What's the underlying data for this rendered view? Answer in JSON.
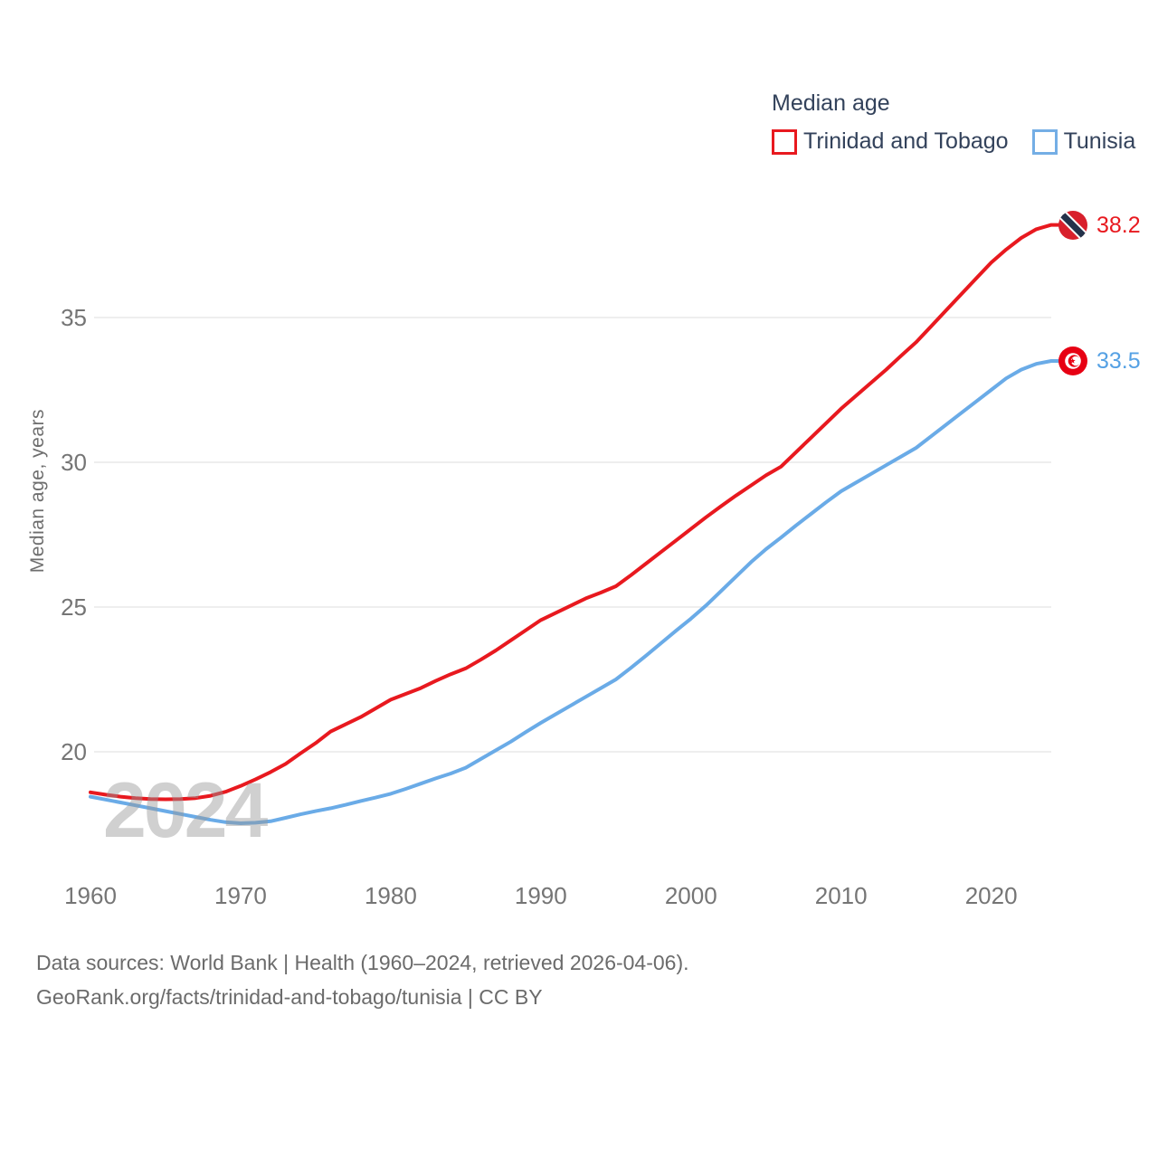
{
  "legend": {
    "title": "Median age",
    "items": [
      {
        "label": "Trinidad and Tobago",
        "color": "#e8191f"
      },
      {
        "label": "Tunisia",
        "color": "#74aee5"
      }
    ]
  },
  "axes": {
    "y_label": "Median age, years"
  },
  "watermark": "2024",
  "end_labels": [
    {
      "series": "Trinidad and Tobago",
      "value": "38.2",
      "color": "#e8191f"
    },
    {
      "series": "Tunisia",
      "value": "33.5",
      "color": "#55a1e4"
    }
  ],
  "footer": {
    "line1": "Data sources: World Bank | Health (1960–2024, retrieved 2026-04-06).",
    "line2": "GeoRank.org/facts/trinidad-and-tobago/tunisia | CC BY"
  },
  "chart_data": {
    "type": "line",
    "title": "Median age",
    "xlabel": "",
    "ylabel": "Median age, years",
    "grid": "horizontal",
    "legend_position": "top-right",
    "xlim": [
      1960,
      2024
    ],
    "ylim": [
      17,
      39.5
    ],
    "xticks": [
      1960,
      1970,
      1980,
      1990,
      2000,
      2010,
      2020
    ],
    "yticks": [
      20,
      25,
      30,
      35
    ],
    "x": [
      1960,
      1961,
      1962,
      1963,
      1964,
      1965,
      1966,
      1967,
      1968,
      1969,
      1970,
      1971,
      1972,
      1973,
      1974,
      1975,
      1976,
      1977,
      1978,
      1979,
      1980,
      1981,
      1982,
      1983,
      1984,
      1985,
      1986,
      1987,
      1988,
      1989,
      1990,
      1991,
      1992,
      1993,
      1994,
      1995,
      1996,
      1997,
      1998,
      1999,
      2000,
      2001,
      2002,
      2003,
      2004,
      2005,
      2006,
      2007,
      2008,
      2009,
      2010,
      2011,
      2012,
      2013,
      2014,
      2015,
      2016,
      2017,
      2018,
      2019,
      2020,
      2021,
      2022,
      2023,
      2024
    ],
    "series": [
      {
        "name": "Trinidad and Tobago",
        "color": "#e8191f",
        "end_value": 38.2,
        "values": [
          18.6,
          18.52,
          18.45,
          18.4,
          18.37,
          18.36,
          18.37,
          18.4,
          18.48,
          18.62,
          18.82,
          19.05,
          19.3,
          19.58,
          19.95,
          20.3,
          20.7,
          20.95,
          21.2,
          21.5,
          21.8,
          22.0,
          22.2,
          22.45,
          22.68,
          22.88,
          23.18,
          23.5,
          23.85,
          24.2,
          24.55,
          24.8,
          25.05,
          25.3,
          25.5,
          25.72,
          26.1,
          26.5,
          26.9,
          27.3,
          27.7,
          28.1,
          28.48,
          28.85,
          29.2,
          29.55,
          29.85,
          30.35,
          30.85,
          31.35,
          31.85,
          32.3,
          32.75,
          33.2,
          33.68,
          34.15,
          34.7,
          35.25,
          35.8,
          36.35,
          36.9,
          37.35,
          37.75,
          38.05,
          38.2
        ]
      },
      {
        "name": "Tunisia",
        "color": "#6aabe7",
        "end_value": 33.5,
        "values": [
          18.45,
          18.35,
          18.25,
          18.15,
          18.05,
          17.95,
          17.85,
          17.75,
          17.65,
          17.57,
          17.53,
          17.55,
          17.6,
          17.72,
          17.84,
          17.95,
          18.05,
          18.17,
          18.3,
          18.42,
          18.55,
          18.72,
          18.9,
          19.08,
          19.25,
          19.45,
          19.75,
          20.05,
          20.35,
          20.68,
          21.0,
          21.3,
          21.6,
          21.9,
          22.2,
          22.5,
          22.9,
          23.32,
          23.75,
          24.18,
          24.6,
          25.05,
          25.55,
          26.05,
          26.55,
          27.0,
          27.4,
          27.82,
          28.22,
          28.62,
          29.0,
          29.3,
          29.6,
          29.9,
          30.2,
          30.5,
          30.9,
          31.3,
          31.7,
          32.1,
          32.5,
          32.9,
          33.2,
          33.4,
          33.5
        ]
      }
    ]
  }
}
